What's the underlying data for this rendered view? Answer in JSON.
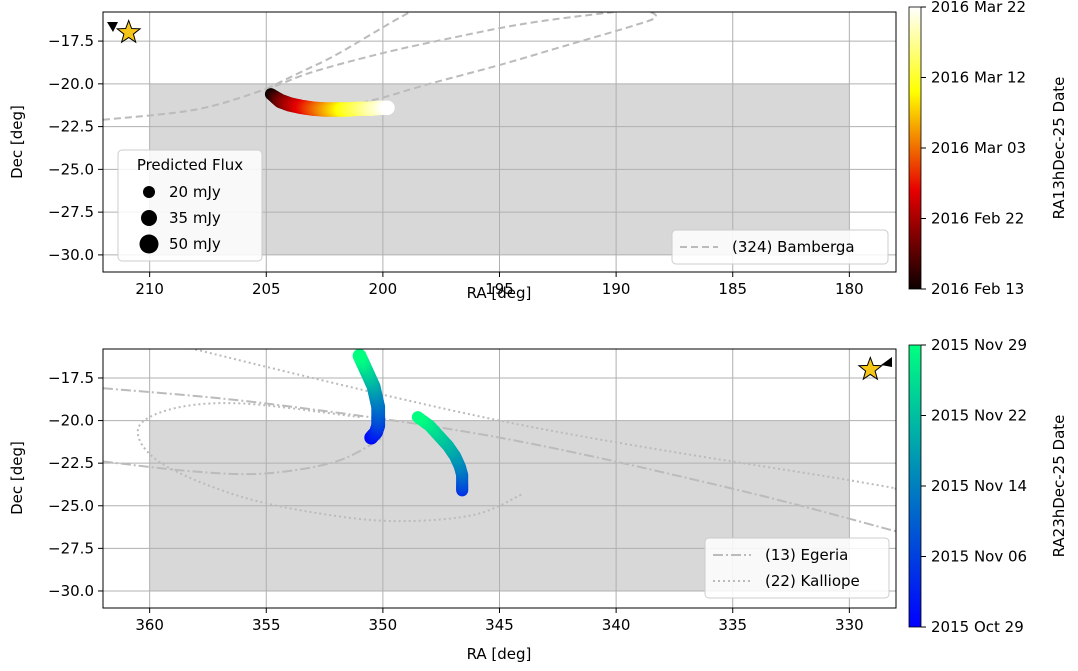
{
  "chart_data": [
    {
      "type": "scatter",
      "xlabel": "RA [deg]",
      "ylabel": "Dec [deg]",
      "xlim": [
        212,
        178
      ],
      "ylim": [
        -31,
        -15.8
      ],
      "x_ticks": [
        210,
        205,
        200,
        195,
        190,
        185,
        180
      ],
      "y_ticks": [
        -17.5,
        -20.0,
        -22.5,
        -25.0,
        -27.5,
        -30.0
      ],
      "x_tick_labels": [
        "210",
        "205",
        "200",
        "195",
        "190",
        "185",
        "180"
      ],
      "y_tick_labels": [
        "−17.5",
        "−20.0",
        "−22.5",
        "−25.0",
        "−27.5",
        "−30.0"
      ],
      "grid": true,
      "shaded_region": {
        "ra": [
          210,
          180
        ],
        "dec": [
          -30,
          -20
        ],
        "color": "#d8d8d8"
      },
      "star": {
        "ra": 210.9,
        "dec": -17.0,
        "color": "#f5c518"
      },
      "colorbar": {
        "label": "RA13hDec-25 Date",
        "colormap": "hot",
        "tick_labels": [
          "2016 Feb 13",
          "2016 Feb 22",
          "2016 Mar 03",
          "2016 Mar 12",
          "2016 Mar 22"
        ]
      },
      "size_legend": {
        "title": "Predicted Flux",
        "labels": [
          "20 mJy",
          "35 mJy",
          "50 mJy"
        ],
        "values_mjy": [
          20,
          35,
          50
        ]
      },
      "orbit_legend": [
        {
          "label": "(324) Bamberga",
          "style": "dashed",
          "color": "#bbbbbb"
        }
      ],
      "track": {
        "ra": [
          204.8,
          204.4,
          204.0,
          203.5,
          203.0,
          202.5,
          202.0,
          201.5,
          201.0,
          200.5,
          200.1,
          199.8
        ],
        "dec": [
          -20.6,
          -21.0,
          -21.2,
          -21.35,
          -21.45,
          -21.5,
          -21.5,
          -21.5,
          -21.45,
          -21.45,
          -21.4,
          -21.4
        ],
        "date_fraction": [
          0.0,
          0.15,
          0.25,
          0.35,
          0.45,
          0.55,
          0.65,
          0.75,
          0.82,
          0.9,
          0.95,
          1.0
        ],
        "flux_mjy": [
          20,
          28,
          28,
          28,
          28,
          28,
          28,
          28,
          28,
          28,
          28,
          28
        ]
      },
      "orbits": [
        {
          "name": "(324) Bamberga",
          "style": "dashed",
          "points": [
            [
              212,
              -22.1
            ],
            [
              208,
              -21.5
            ],
            [
              205,
              -20.3
            ],
            [
              203,
              -19.3
            ],
            [
              200,
              -18.2
            ],
            [
              197,
              -17.3
            ],
            [
              194,
              -16.5
            ],
            [
              191,
              -15.95
            ],
            [
              189,
              -15.7
            ],
            [
              188.3,
              -16.1
            ],
            [
              189.5,
              -16.7
            ],
            [
              192,
              -17.7
            ],
            [
              195,
              -18.9
            ],
            [
              198,
              -20.0
            ],
            [
              200,
              -20.8
            ],
            [
              201.5,
              -21.3
            ]
          ]
        },
        {
          "name": "(324) Bamberga",
          "style": "dashed",
          "points": [
            [
              205,
              -20.3
            ],
            [
              203.5,
              -19.3
            ],
            [
              202,
              -18.3
            ],
            [
              199.5,
              -16.3
            ],
            [
              198,
              -15.2
            ]
          ]
        }
      ]
    },
    {
      "type": "scatter",
      "xlabel": "RA [deg]",
      "ylabel": "Dec [deg]",
      "xlim": [
        362,
        328
      ],
      "ylim": [
        -31,
        -15.8
      ],
      "x_ticks": [
        360,
        355,
        350,
        345,
        340,
        335,
        330
      ],
      "y_ticks": [
        -17.5,
        -20.0,
        -22.5,
        -25.0,
        -27.5,
        -30.0
      ],
      "x_tick_labels": [
        "360",
        "355",
        "350",
        "345",
        "340",
        "335",
        "330"
      ],
      "y_tick_labels": [
        "−17.5",
        "−20.0",
        "−22.5",
        "−25.0",
        "−27.5",
        "−30.0"
      ],
      "grid": true,
      "shaded_region": {
        "ra": [
          360,
          330
        ],
        "dec": [
          -30,
          -20
        ],
        "color": "#d8d8d8"
      },
      "star": {
        "ra": 329.1,
        "dec": -17.0,
        "color": "#f5c518"
      },
      "colorbar": {
        "label": "RA23hDec-25 Date",
        "colormap": "winter",
        "tick_labels": [
          "2015 Oct 29",
          "2015 Nov 06",
          "2015 Nov 14",
          "2015 Nov 22",
          "2015 Nov 29"
        ]
      },
      "orbit_legend": [
        {
          "label": "(13) Egeria",
          "style": "dashdot",
          "color": "#bbbbbb"
        },
        {
          "label": "(22) Kalliope",
          "style": "dotted",
          "color": "#bbbbbb"
        }
      ],
      "tracks": [
        {
          "ra": [
            351.0,
            350.8,
            350.6,
            350.4,
            350.3,
            350.2,
            350.2,
            350.2,
            350.3,
            350.5
          ],
          "dec": [
            -16.2,
            -16.8,
            -17.4,
            -18.0,
            -18.6,
            -19.2,
            -19.8,
            -20.3,
            -20.7,
            -21.0
          ],
          "date_fraction": [
            1.0,
            0.88,
            0.76,
            0.64,
            0.52,
            0.42,
            0.32,
            0.22,
            0.12,
            0.03
          ],
          "flux_mjy": [
            26,
            26,
            26,
            26,
            26,
            26,
            26,
            26,
            26,
            26
          ]
        },
        {
          "ra": [
            348.5,
            348.0,
            347.6,
            347.2,
            346.9,
            346.7,
            346.6,
            346.6,
            346.6
          ],
          "dec": [
            -19.8,
            -20.3,
            -20.9,
            -21.5,
            -22.1,
            -22.7,
            -23.2,
            -23.7,
            -24.1
          ],
          "date_fraction": [
            1.0,
            0.9,
            0.8,
            0.7,
            0.6,
            0.5,
            0.4,
            0.3,
            0.2
          ],
          "flux_mjy": [
            20,
            20,
            20,
            20,
            20,
            20,
            20,
            20,
            20
          ]
        }
      ],
      "orbits": [
        {
          "name": "(13) Egeria",
          "style": "dashdot",
          "points": [
            [
              362,
              -18.1
            ],
            [
              355,
              -19.0
            ],
            [
              345,
              -21.0
            ],
            [
              335,
              -24.0
            ],
            [
              328,
              -26.5
            ]
          ]
        },
        {
          "name": "(13) Egeria",
          "style": "dashdot",
          "points": [
            [
              362,
              -22.4
            ],
            [
              358,
              -23.0
            ],
            [
              355,
              -23.1
            ],
            [
              352,
              -22.4
            ],
            [
              350,
              -21.0
            ]
          ]
        },
        {
          "name": "(22) Kalliope",
          "style": "dotted",
          "points": [
            [
              362,
              -14.5
            ],
            [
              345,
              -20.0
            ],
            [
              330,
              -23.5
            ],
            [
              328,
              -24.0
            ]
          ]
        },
        {
          "name": "(22) Kalliope",
          "style": "dotted",
          "points": [
            [
              351,
              -19.8
            ],
            [
              356,
              -19.0
            ],
            [
              359,
              -19.3
            ],
            [
              360.5,
              -20.5
            ],
            [
              359.5,
              -22.5
            ],
            [
              356,
              -24.5
            ],
            [
              352,
              -25.6
            ],
            [
              349,
              -25.9
            ],
            [
              346,
              -25.5
            ],
            [
              344,
              -24.3
            ]
          ]
        }
      ]
    }
  ]
}
